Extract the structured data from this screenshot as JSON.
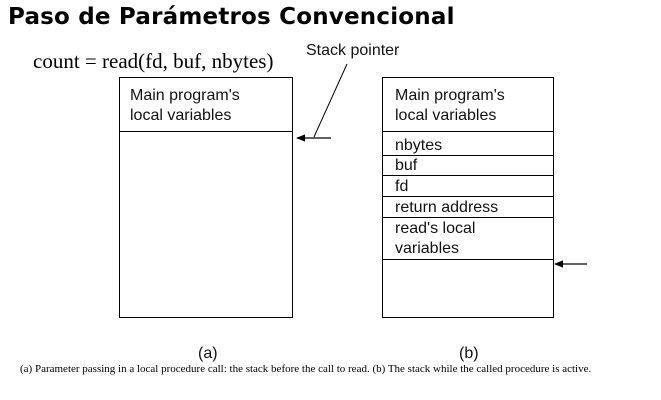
{
  "title": "Paso de Parámetros Convencional",
  "formula": "count = read(fd, buf, nbytes)",
  "pointer_label": "Stack pointer",
  "stack_a": {
    "cells": [
      {
        "lines": [
          "Main program's",
          "local variables"
        ]
      }
    ],
    "sublabel": "(a)"
  },
  "stack_b": {
    "cells": [
      {
        "lines": [
          "Main program's",
          "local variables"
        ]
      },
      {
        "lines": [
          "nbytes"
        ]
      },
      {
        "lines": [
          "buf"
        ]
      },
      {
        "lines": [
          "fd"
        ]
      },
      {
        "lines": [
          "return address"
        ]
      },
      {
        "lines": [
          "read's local",
          "variables"
        ]
      }
    ],
    "sublabel": "(b)"
  },
  "caption": "(a) Parameter passing in a local procedure call: the stack before the call to read. (b) The stack while the called procedure is active."
}
